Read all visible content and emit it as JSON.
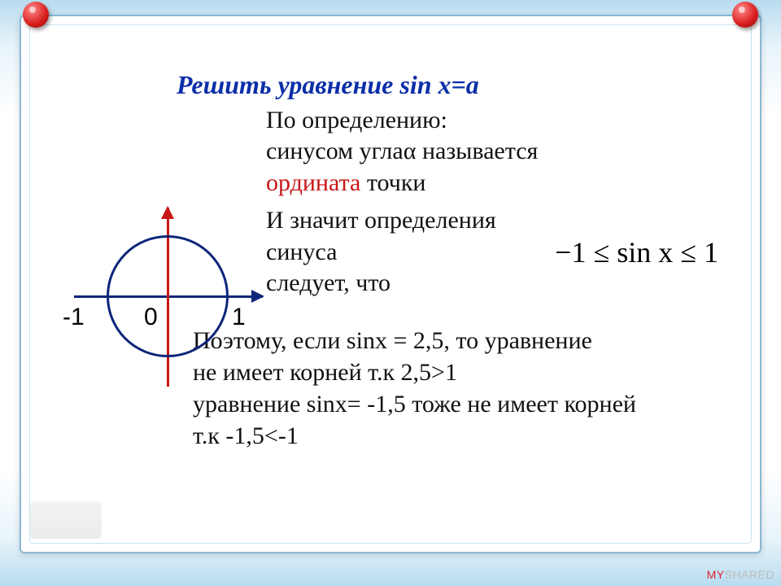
{
  "title": "Решить уравнение  sin x=а",
  "definition": {
    "line1": "По определению:",
    "line2_pre": "синусом угла",
    "line2_alpha": "α",
    "line2_post": " называется",
    "ordinate": "ордината",
    "line3_post": "  точки"
  },
  "follows": {
    "line1": "И значит определения синуса",
    "line2": "следует, что"
  },
  "formula": "−1 ≤ sin x ≤ 1",
  "conclusion": {
    "l1": "Поэтому, если  sinx = 2,5, то уравнение",
    "l2": "не имеет корней  т.к  2,5>1",
    "l3": "уравнение sinx= -1,5 тоже не имеет корней",
    "l4": "т.к  -1,5<-1"
  },
  "diagram": {
    "type": "unit-circle",
    "circle_color": "#0d267a",
    "axis_x_color": "#0d267a",
    "axis_y_color": "#c81616",
    "labels": {
      "minus1": "-1",
      "zero": "0",
      "one": "1"
    },
    "label_fontsize": 30,
    "circle_border_width": 3,
    "axis_width": 3
  },
  "colors": {
    "title": "#0b2ea8",
    "ordinate": "#c81616",
    "text": "#111111",
    "frame_border": "#8ab8d4",
    "background_gradient": [
      "#b8dcef",
      "#ffffff",
      "#b8dcef"
    ]
  },
  "watermark": {
    "left": "MY",
    "right": "SHARED"
  },
  "fontsize": {
    "title": 32,
    "body": 30,
    "formula": 36
  }
}
